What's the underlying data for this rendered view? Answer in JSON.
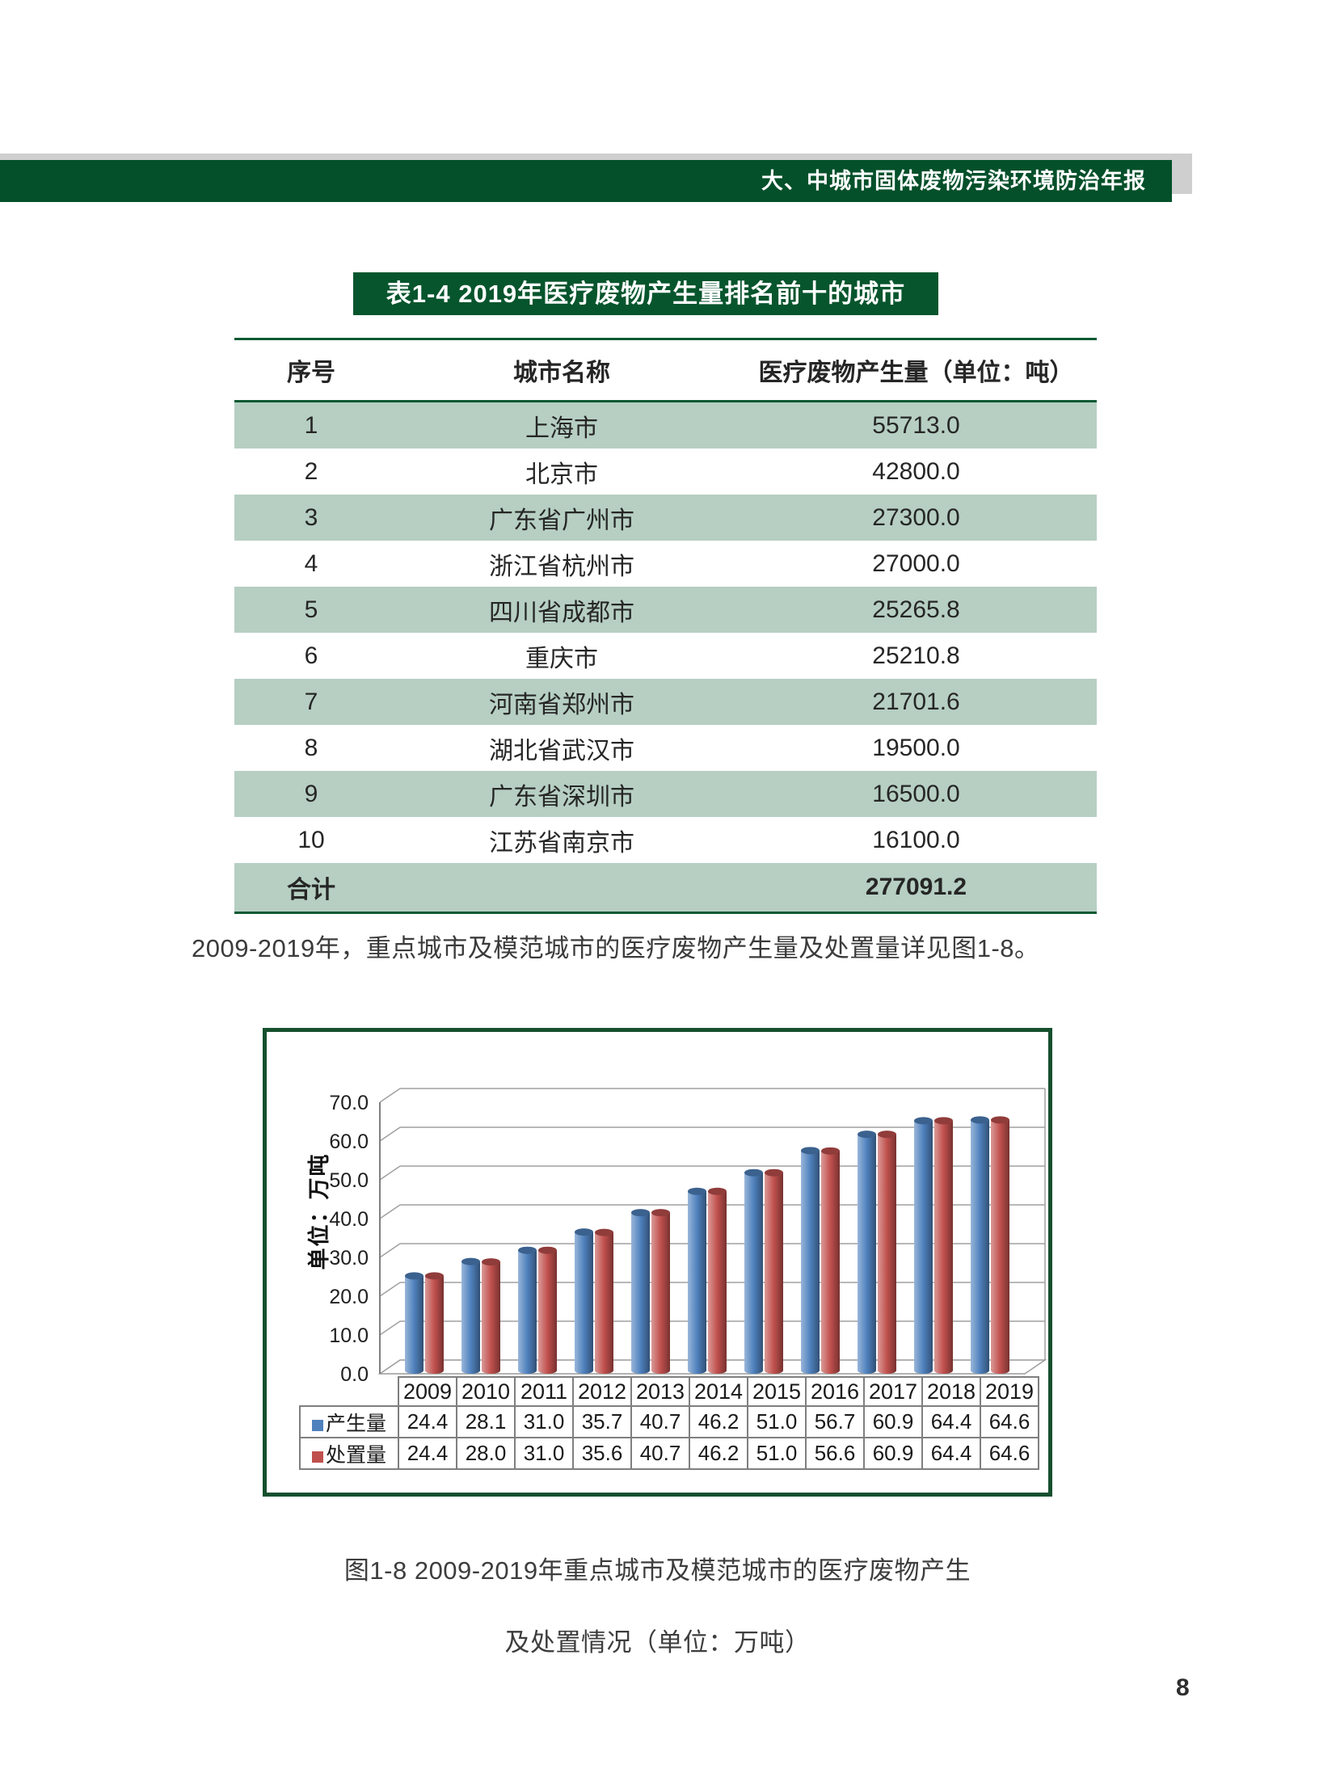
{
  "header": {
    "title": "大、中城市固体废物污染环境防治年报"
  },
  "table": {
    "title": "表1-4 2019年医疗废物产生量排名前十的城市",
    "columns": [
      "序号",
      "城市名称",
      "医疗废物产生量（单位：吨）"
    ],
    "rows": [
      [
        "1",
        "上海市",
        "55713.0"
      ],
      [
        "2",
        "北京市",
        "42800.0"
      ],
      [
        "3",
        "广东省广州市",
        "27300.0"
      ],
      [
        "4",
        "浙江省杭州市",
        "27000.0"
      ],
      [
        "5",
        "四川省成都市",
        "25265.8"
      ],
      [
        "6",
        "重庆市",
        "25210.8"
      ],
      [
        "7",
        "河南省郑州市",
        "21701.6"
      ],
      [
        "8",
        "湖北省武汉市",
        "19500.0"
      ],
      [
        "9",
        "广东省深圳市",
        "16500.0"
      ],
      [
        "10",
        "江苏省南京市",
        "16100.0"
      ]
    ],
    "total_label": "合计",
    "total_value": "277091.2"
  },
  "paragraph": "2009-2019年，重点城市及模范城市的医疗废物产生量及处置量详见图1-8。",
  "chart_data": {
    "type": "bar",
    "title": "",
    "categories": [
      "2009",
      "2010",
      "2011",
      "2012",
      "2013",
      "2014",
      "2015",
      "2016",
      "2017",
      "2018",
      "2019"
    ],
    "series": [
      {
        "name": "产生量",
        "color": "#4f81bd",
        "values": [
          24.4,
          28.1,
          31.0,
          35.7,
          40.7,
          46.2,
          51.0,
          56.7,
          60.9,
          64.4,
          64.6
        ]
      },
      {
        "name": "处置量",
        "color": "#c0504d",
        "values": [
          24.4,
          28.0,
          31.0,
          35.6,
          40.7,
          46.2,
          51.0,
          56.6,
          60.9,
          64.4,
          64.6
        ]
      }
    ],
    "xlabel": "",
    "ylabel": "单位：万吨",
    "ylim": [
      0,
      70
    ],
    "ytick_step": 10,
    "grid": true,
    "style": "3d-cylinder",
    "legend_position": "data-table-left"
  },
  "caption": {
    "line1": "图1-8 2009-2019年重点城市及模范城市的医疗废物产生",
    "line2": "及处置情况（单位：万吨）"
  },
  "page_number": "8",
  "colors": {
    "banner_green": "#03502a",
    "title_green": "#07552d",
    "table_line_green": "#0e5a33",
    "row_green": "#b6cfc2",
    "chart_border_green": "#16502e",
    "gridline_gray": "#a0a0a0",
    "top_strip_gray": "#cfcfcf",
    "series_blue": "#4f81bd",
    "series_red": "#c0504d"
  }
}
